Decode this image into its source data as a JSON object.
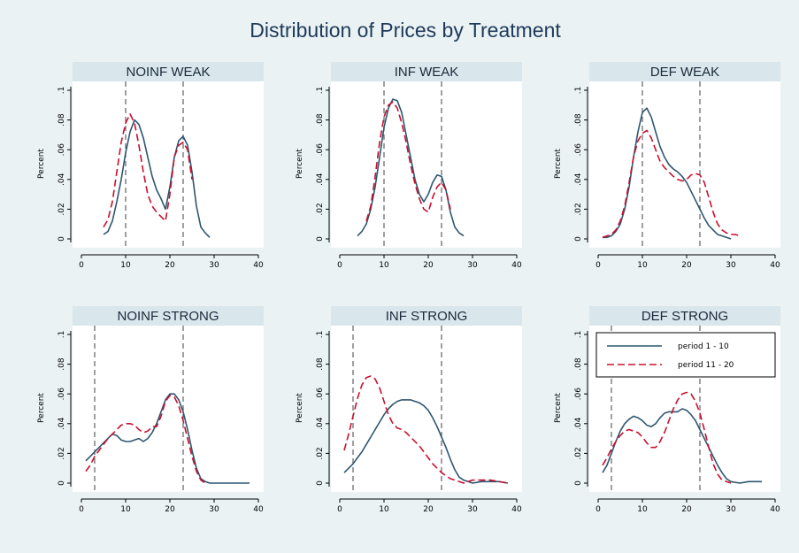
{
  "title": "Distribution of Prices by Treatment",
  "colors": {
    "background": "#eaf2f3",
    "plot_background": "#ffffff",
    "strip": "#d9e6ec",
    "series1": "#2d5670",
    "series2": "#c8102e",
    "reference_line": "#606060"
  },
  "chart_data": [
    {
      "type": "line",
      "title": "NOINF WEAK",
      "ylabel": "Percent",
      "xlim": [
        0,
        40
      ],
      "ylim": [
        0,
        0.1
      ],
      "xticks": [
        "0",
        "10",
        "20",
        "30",
        "40"
      ],
      "yticks": [
        "0",
        ".02",
        ".04",
        ".06",
        ".08",
        ".1"
      ],
      "reference_lines_x": [
        10,
        23
      ],
      "series": [
        {
          "name": "period 1 - 10",
          "style": "solid",
          "x": [
            5,
            6,
            7,
            8,
            9,
            10,
            11,
            12,
            13,
            14,
            15,
            16,
            17,
            18,
            19,
            20,
            21,
            22,
            23,
            24,
            25,
            26,
            27,
            28,
            29
          ],
          "y": [
            0.003,
            0.005,
            0.012,
            0.025,
            0.04,
            0.058,
            0.072,
            0.08,
            0.077,
            0.068,
            0.055,
            0.042,
            0.033,
            0.027,
            0.02,
            0.035,
            0.055,
            0.066,
            0.069,
            0.063,
            0.045,
            0.022,
            0.008,
            0.004,
            0.001
          ]
        },
        {
          "name": "period 11 - 20",
          "style": "dashed",
          "x": [
            5,
            6,
            7,
            8,
            9,
            10,
            11,
            12,
            13,
            14,
            15,
            16,
            17,
            18,
            19,
            20,
            21,
            22,
            23,
            24,
            25
          ],
          "y": [
            0.008,
            0.013,
            0.025,
            0.045,
            0.065,
            0.078,
            0.084,
            0.078,
            0.063,
            0.045,
            0.03,
            0.022,
            0.018,
            0.015,
            0.012,
            0.03,
            0.055,
            0.063,
            0.065,
            0.06,
            0.04
          ]
        }
      ]
    },
    {
      "type": "line",
      "title": "INF WEAK",
      "ylabel": "Percent",
      "xlim": [
        0,
        40
      ],
      "ylim": [
        0,
        0.1
      ],
      "xticks": [
        "0",
        "10",
        "20",
        "30",
        "40"
      ],
      "yticks": [
        "0",
        ".02",
        ".04",
        ".06",
        ".08",
        ".1"
      ],
      "reference_lines_x": [
        10,
        23
      ],
      "series": [
        {
          "name": "period 1 - 10",
          "style": "solid",
          "x": [
            4,
            5,
            6,
            7,
            8,
            9,
            10,
            11,
            12,
            13,
            14,
            15,
            16,
            17,
            18,
            19,
            20,
            21,
            22,
            23,
            24,
            25,
            26,
            27,
            28
          ],
          "y": [
            0.002,
            0.005,
            0.01,
            0.02,
            0.035,
            0.055,
            0.075,
            0.088,
            0.094,
            0.093,
            0.085,
            0.07,
            0.055,
            0.04,
            0.03,
            0.025,
            0.03,
            0.038,
            0.043,
            0.042,
            0.033,
            0.018,
            0.008,
            0.004,
            0.002
          ]
        },
        {
          "name": "period 11 - 20",
          "style": "dashed",
          "x": [
            6,
            7,
            8,
            9,
            10,
            11,
            12,
            13,
            14,
            15,
            16,
            17,
            18,
            19,
            20,
            21,
            22,
            23,
            24,
            25
          ],
          "y": [
            0.012,
            0.022,
            0.042,
            0.065,
            0.082,
            0.09,
            0.092,
            0.088,
            0.078,
            0.065,
            0.05,
            0.037,
            0.027,
            0.02,
            0.018,
            0.028,
            0.035,
            0.038,
            0.033,
            0.02
          ]
        }
      ]
    },
    {
      "type": "line",
      "title": "DEF WEAK",
      "ylabel": "Percent",
      "xlim": [
        0,
        40
      ],
      "ylim": [
        0,
        0.1
      ],
      "xticks": [
        "0",
        "10",
        "20",
        "30",
        "40"
      ],
      "yticks": [
        "0",
        ".02",
        ".04",
        ".06",
        ".08",
        ".1"
      ],
      "reference_lines_x": [
        10,
        23
      ],
      "series": [
        {
          "name": "period 1 - 10",
          "style": "solid",
          "x": [
            1,
            2,
            3,
            4,
            5,
            6,
            7,
            8,
            9,
            10,
            11,
            12,
            13,
            14,
            15,
            16,
            17,
            18,
            19,
            20,
            21,
            22,
            23,
            24,
            25,
            26,
            27,
            28,
            29,
            30
          ],
          "y": [
            0.001,
            0.001,
            0.002,
            0.005,
            0.01,
            0.02,
            0.035,
            0.055,
            0.072,
            0.085,
            0.088,
            0.082,
            0.072,
            0.062,
            0.055,
            0.05,
            0.047,
            0.045,
            0.042,
            0.038,
            0.032,
            0.026,
            0.02,
            0.014,
            0.009,
            0.006,
            0.003,
            0.002,
            0.001,
            0.0
          ]
        },
        {
          "name": "period 11 - 20",
          "style": "dashed",
          "x": [
            1,
            2,
            3,
            4,
            5,
            6,
            7,
            8,
            9,
            10,
            11,
            12,
            13,
            14,
            15,
            16,
            17,
            18,
            19,
            20,
            21,
            22,
            23,
            24,
            25,
            26,
            27,
            28,
            29,
            30,
            31,
            32
          ],
          "y": [
            0.001,
            0.002,
            0.003,
            0.006,
            0.012,
            0.022,
            0.038,
            0.055,
            0.066,
            0.071,
            0.073,
            0.068,
            0.06,
            0.052,
            0.048,
            0.045,
            0.042,
            0.04,
            0.039,
            0.04,
            0.043,
            0.044,
            0.043,
            0.038,
            0.028,
            0.018,
            0.01,
            0.006,
            0.004,
            0.003,
            0.003,
            0.002
          ]
        }
      ]
    },
    {
      "type": "line",
      "title": "NOINF STRONG",
      "ylabel": "Percent",
      "xlim": [
        0,
        40
      ],
      "ylim": [
        0,
        0.1
      ],
      "xticks": [
        "0",
        "10",
        "20",
        "30",
        "40"
      ],
      "yticks": [
        "0",
        ".02",
        ".04",
        ".06",
        ".08",
        ".1"
      ],
      "reference_lines_x": [
        3,
        23
      ],
      "series": [
        {
          "name": "period 1 - 10",
          "style": "solid",
          "x": [
            1,
            2,
            3,
            4,
            5,
            6,
            7,
            8,
            9,
            10,
            11,
            12,
            13,
            14,
            15,
            16,
            17,
            18,
            19,
            20,
            21,
            22,
            23,
            24,
            25,
            26,
            27,
            28,
            29,
            30,
            32,
            34,
            36,
            38
          ],
          "y": [
            0.015,
            0.018,
            0.021,
            0.024,
            0.027,
            0.03,
            0.033,
            0.032,
            0.029,
            0.028,
            0.028,
            0.029,
            0.03,
            0.028,
            0.03,
            0.034,
            0.04,
            0.048,
            0.056,
            0.06,
            0.06,
            0.056,
            0.048,
            0.036,
            0.022,
            0.01,
            0.003,
            0.001,
            0.0,
            0.0,
            0.0,
            0.0,
            0.0,
            0.0
          ]
        },
        {
          "name": "period 11 - 20",
          "style": "dashed",
          "x": [
            1,
            2,
            3,
            4,
            5,
            6,
            7,
            8,
            9,
            10,
            11,
            12,
            13,
            14,
            15,
            16,
            17,
            18,
            19,
            20,
            21,
            22,
            23,
            24,
            25,
            26,
            27,
            28
          ],
          "y": [
            0.008,
            0.012,
            0.018,
            0.022,
            0.026,
            0.03,
            0.033,
            0.036,
            0.039,
            0.04,
            0.04,
            0.039,
            0.036,
            0.034,
            0.035,
            0.038,
            0.038,
            0.045,
            0.055,
            0.059,
            0.058,
            0.052,
            0.042,
            0.03,
            0.018,
            0.008,
            0.002,
            0.0
          ]
        }
      ]
    },
    {
      "type": "line",
      "title": "INF STRONG",
      "ylabel": "Percent",
      "xlim": [
        0,
        40
      ],
      "ylim": [
        0,
        0.1
      ],
      "xticks": [
        "0",
        "10",
        "20",
        "30",
        "40"
      ],
      "yticks": [
        "0",
        ".02",
        ".04",
        ".06",
        ".08",
        ".1"
      ],
      "reference_lines_x": [
        3,
        23
      ],
      "series": [
        {
          "name": "period 1 - 10",
          "style": "solid",
          "x": [
            1,
            2,
            3,
            4,
            5,
            6,
            7,
            8,
            9,
            10,
            11,
            12,
            13,
            14,
            15,
            16,
            17,
            18,
            19,
            20,
            21,
            22,
            23,
            24,
            25,
            26,
            27,
            28,
            29,
            30,
            32,
            34,
            36,
            38
          ],
          "y": [
            0.007,
            0.01,
            0.013,
            0.017,
            0.021,
            0.026,
            0.031,
            0.036,
            0.041,
            0.046,
            0.05,
            0.053,
            0.055,
            0.056,
            0.056,
            0.056,
            0.055,
            0.054,
            0.052,
            0.049,
            0.044,
            0.038,
            0.031,
            0.024,
            0.016,
            0.009,
            0.004,
            0.002,
            0.001,
            0.0,
            0.001,
            0.001,
            0.001,
            0.0
          ]
        },
        {
          "name": "period 11 - 20",
          "style": "dashed",
          "x": [
            1,
            2,
            3,
            4,
            5,
            6,
            7,
            8,
            9,
            10,
            11,
            12,
            13,
            14,
            15,
            16,
            17,
            18,
            19,
            20,
            21,
            22,
            23,
            24,
            25,
            26,
            27,
            28,
            29,
            30,
            32,
            34,
            36,
            38
          ],
          "y": [
            0.022,
            0.033,
            0.045,
            0.057,
            0.066,
            0.071,
            0.072,
            0.07,
            0.064,
            0.055,
            0.046,
            0.04,
            0.037,
            0.036,
            0.034,
            0.031,
            0.028,
            0.025,
            0.021,
            0.017,
            0.013,
            0.01,
            0.007,
            0.005,
            0.003,
            0.002,
            0.001,
            0.0,
            0.001,
            0.002,
            0.002,
            0.002,
            0.001,
            0.0
          ]
        }
      ]
    },
    {
      "type": "line",
      "title": "DEF STRONG",
      "ylabel": "Percent",
      "xlim": [
        0,
        40
      ],
      "ylim": [
        0,
        0.1
      ],
      "xticks": [
        "0",
        "10",
        "20",
        "30",
        "40"
      ],
      "yticks": [
        "0",
        ".02",
        ".04",
        ".06",
        ".08",
        ".1"
      ],
      "reference_lines_x": [
        3,
        23
      ],
      "legend": {
        "position": "top",
        "entries": [
          "period 1 - 10",
          "period 11 - 20"
        ]
      },
      "series": [
        {
          "name": "period 1 - 10",
          "style": "solid",
          "x": [
            1,
            2,
            3,
            4,
            5,
            6,
            7,
            8,
            9,
            10,
            11,
            12,
            13,
            14,
            15,
            16,
            17,
            18,
            19,
            20,
            21,
            22,
            23,
            24,
            25,
            26,
            27,
            28,
            29,
            30,
            32,
            34,
            36,
            37
          ],
          "y": [
            0.007,
            0.012,
            0.02,
            0.028,
            0.035,
            0.04,
            0.043,
            0.045,
            0.044,
            0.042,
            0.039,
            0.038,
            0.04,
            0.044,
            0.047,
            0.048,
            0.048,
            0.048,
            0.05,
            0.049,
            0.046,
            0.042,
            0.036,
            0.03,
            0.024,
            0.018,
            0.012,
            0.007,
            0.003,
            0.001,
            0.0,
            0.001,
            0.001,
            0.001
          ]
        },
        {
          "name": "period 11 - 20",
          "style": "dashed",
          "x": [
            1,
            2,
            3,
            4,
            5,
            6,
            7,
            8,
            9,
            10,
            11,
            12,
            13,
            14,
            15,
            16,
            17,
            18,
            19,
            20,
            21,
            22,
            23,
            24,
            25,
            26,
            27,
            28,
            29,
            30
          ],
          "y": [
            0.012,
            0.017,
            0.023,
            0.028,
            0.032,
            0.035,
            0.036,
            0.035,
            0.034,
            0.031,
            0.027,
            0.024,
            0.024,
            0.028,
            0.034,
            0.042,
            0.05,
            0.056,
            0.06,
            0.061,
            0.06,
            0.055,
            0.047,
            0.036,
            0.024,
            0.013,
            0.006,
            0.002,
            0.001,
            0.0
          ]
        }
      ]
    }
  ]
}
